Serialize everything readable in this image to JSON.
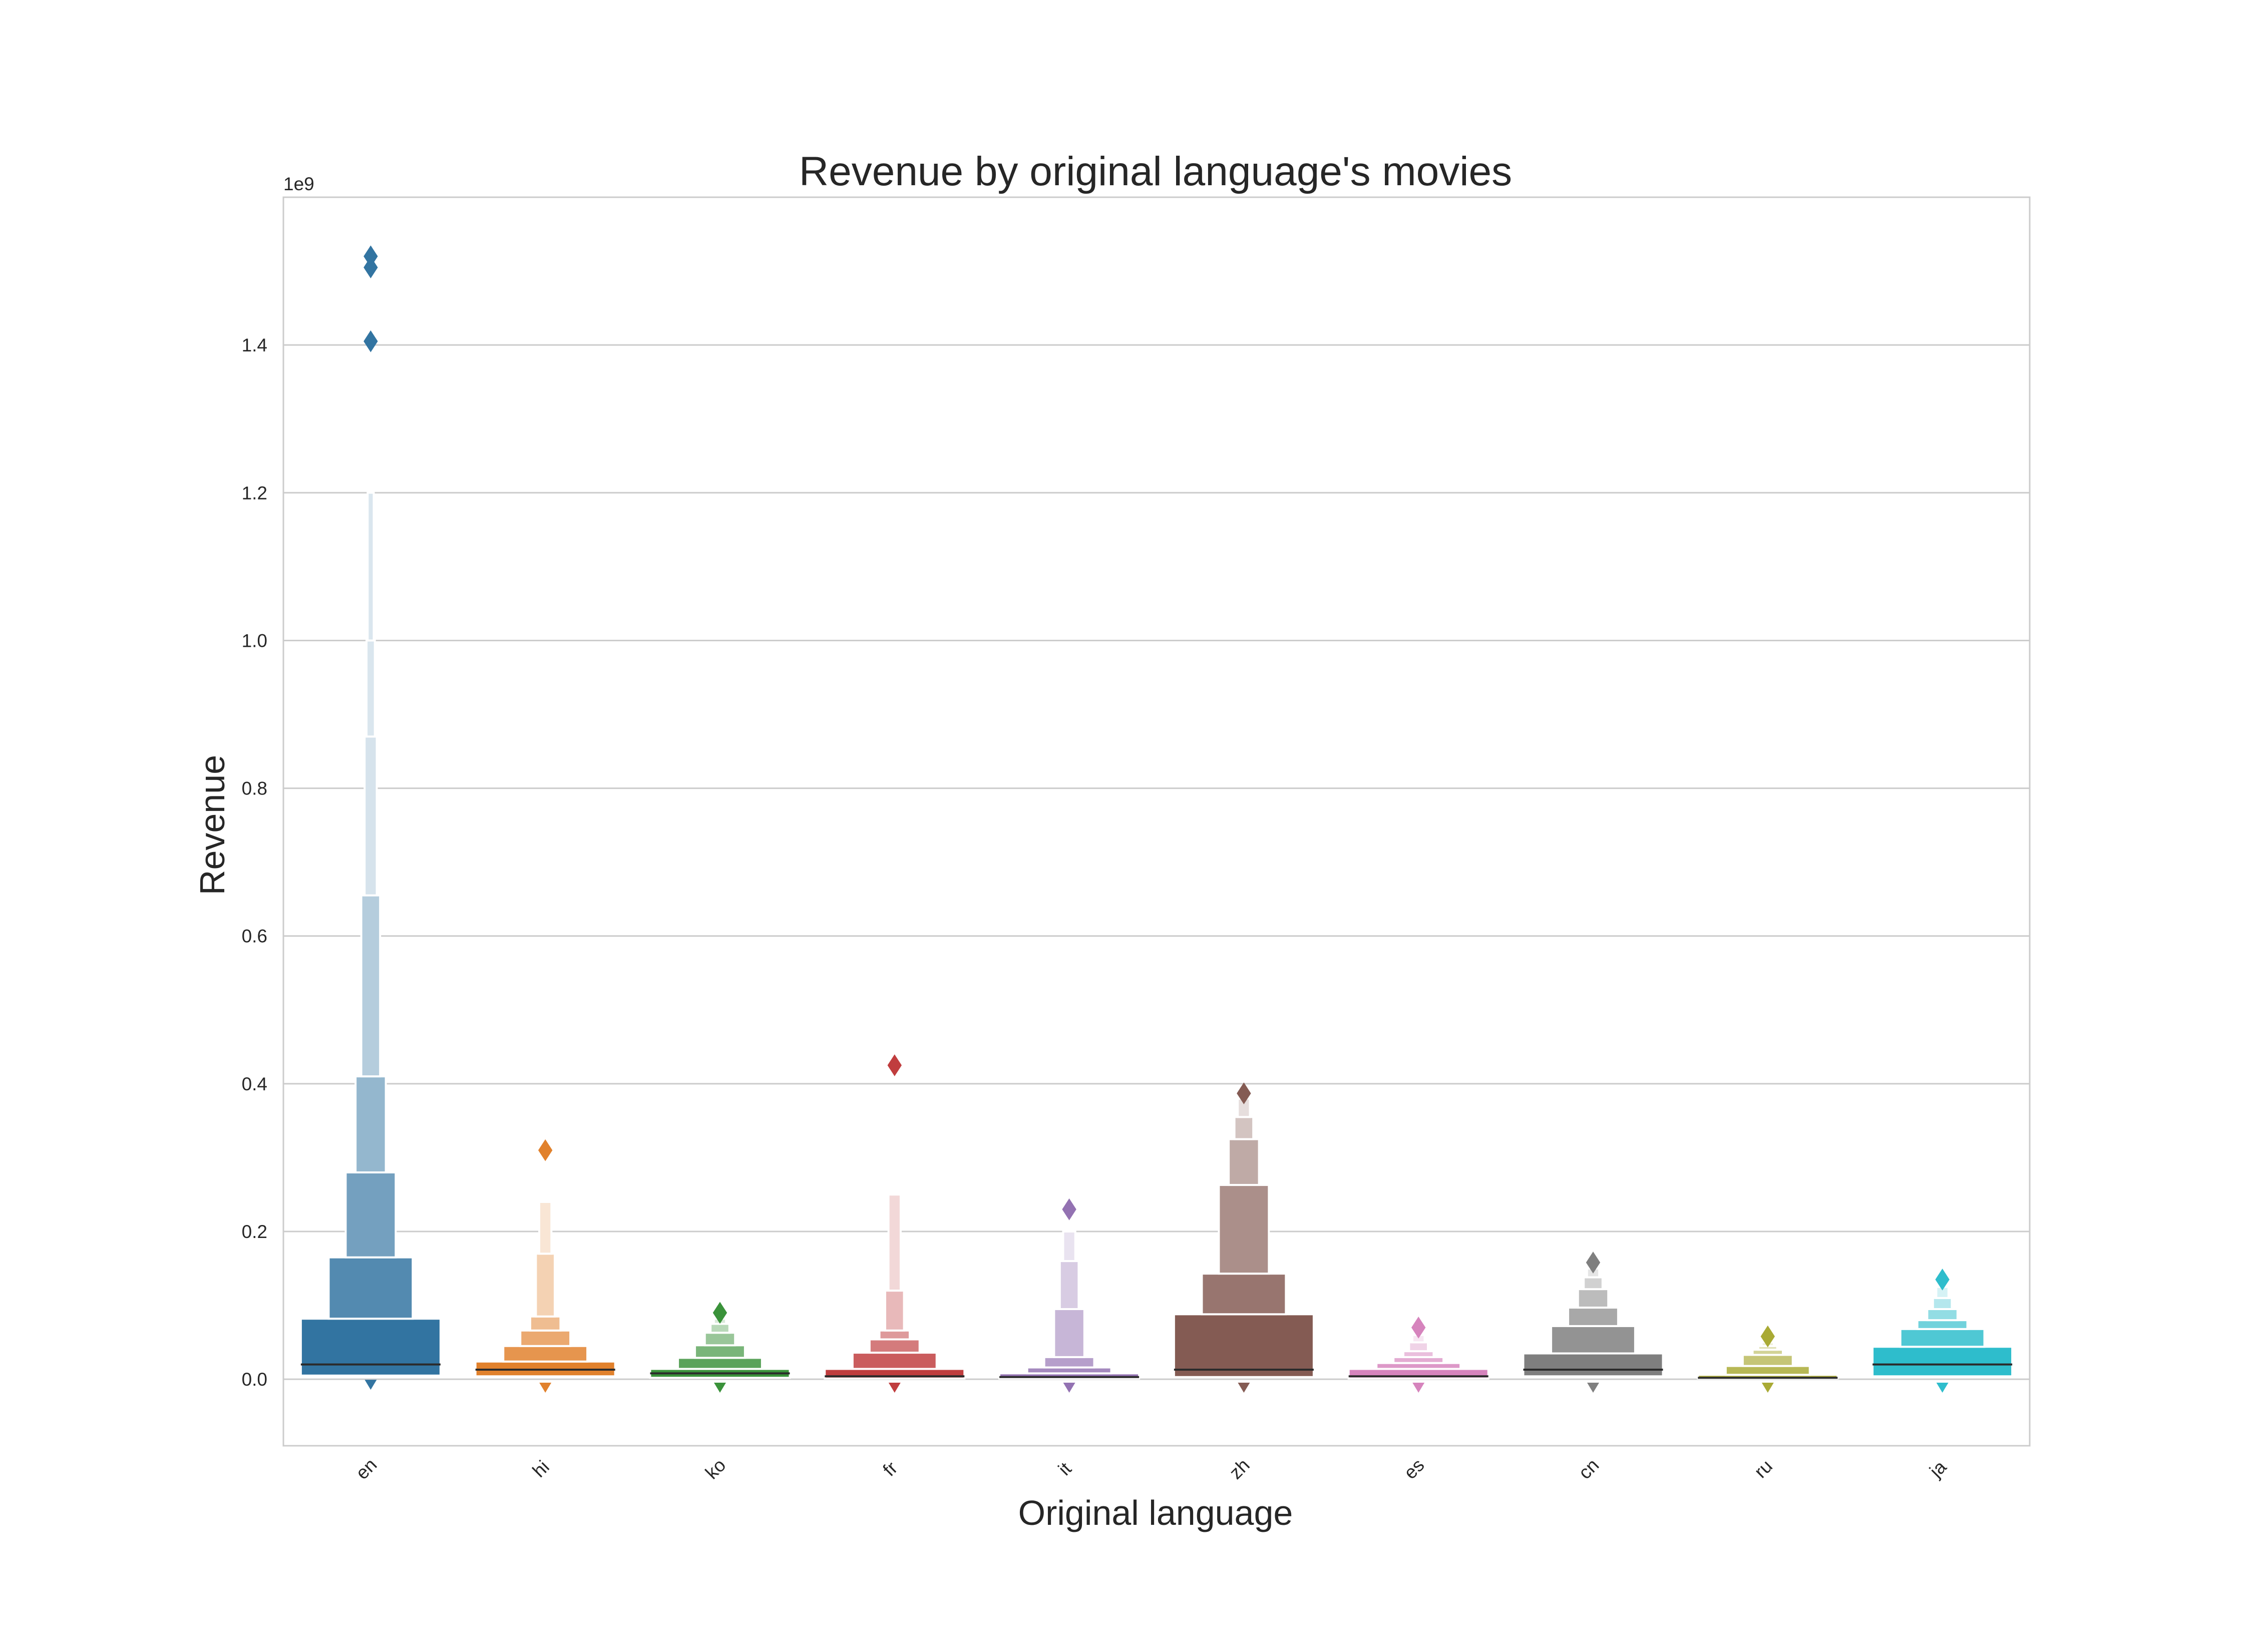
{
  "chart_data": {
    "type": "boxen",
    "title": "Revenue by original language's movies",
    "xlabel": "Original language",
    "ylabel": "Revenue",
    "y_offset_label": "1e9",
    "ylim": [
      -0.09,
      1.6
    ],
    "y_ticks": [
      0.0,
      0.2,
      0.4,
      0.6,
      0.8,
      1.0,
      1.2,
      1.4
    ],
    "y_tick_labels": [
      "0.0",
      "0.2",
      "0.4",
      "0.6",
      "0.8",
      "1.0",
      "1.2",
      "1.4"
    ],
    "grid": "horizontal",
    "categories": [
      "en",
      "hi",
      "ko",
      "fr",
      "it",
      "zh",
      "es",
      "cn",
      "ru",
      "ja"
    ],
    "series": [
      {
        "category": "en",
        "color": "#3274a1",
        "median": 0.02,
        "boxes": [
          [
            0.005,
            0.082
          ],
          [
            0.082,
            0.165
          ],
          [
            0.165,
            0.28
          ],
          [
            0.28,
            0.41
          ],
          [
            0.41,
            0.655
          ],
          [
            0.655,
            0.87
          ],
          [
            0.87,
            1.0
          ],
          [
            1.0,
            1.2
          ]
        ],
        "outliers": [
          1.52,
          1.505,
          1.405
        ],
        "min": -0.002
      },
      {
        "category": "hi",
        "color": "#e1812c",
        "median": 0.013,
        "boxes": [
          [
            0.004,
            0.024
          ],
          [
            0.024,
            0.045
          ],
          [
            0.045,
            0.066
          ],
          [
            0.066,
            0.085
          ],
          [
            0.085,
            0.17
          ],
          [
            0.17,
            0.24
          ]
        ],
        "outliers": [
          0.31
        ],
        "min": -0.006
      },
      {
        "category": "ko",
        "color": "#3a923a",
        "median": 0.008,
        "boxes": [
          [
            0.002,
            0.014
          ],
          [
            0.014,
            0.029
          ],
          [
            0.029,
            0.046
          ],
          [
            0.046,
            0.063
          ],
          [
            0.063,
            0.075
          ],
          [
            0.075,
            0.082
          ]
        ],
        "outliers": [
          0.09
        ],
        "min": -0.006
      },
      {
        "category": "fr",
        "color": "#c03d3e",
        "median": 0.004,
        "boxes": [
          [
            0.001,
            0.014
          ],
          [
            0.014,
            0.036
          ],
          [
            0.036,
            0.054
          ],
          [
            0.054,
            0.066
          ],
          [
            0.066,
            0.12
          ],
          [
            0.12,
            0.25
          ]
        ],
        "outliers": [
          0.425
        ],
        "min": -0.006
      },
      {
        "category": "it",
        "color": "#9372b2",
        "median": 0.003,
        "boxes": [
          [
            0.001,
            0.008
          ],
          [
            0.008,
            0.016
          ],
          [
            0.016,
            0.03
          ],
          [
            0.03,
            0.095
          ],
          [
            0.095,
            0.16
          ],
          [
            0.16,
            0.2
          ]
        ],
        "outliers": [
          0.23
        ],
        "min": -0.006
      },
      {
        "category": "zh",
        "color": "#845b53",
        "median": 0.013,
        "boxes": [
          [
            0.003,
            0.088
          ],
          [
            0.088,
            0.143
          ],
          [
            0.143,
            0.263
          ],
          [
            0.263,
            0.325
          ],
          [
            0.325,
            0.355
          ],
          [
            0.355,
            0.38
          ]
        ],
        "outliers": [
          0.387
        ],
        "min": -0.006
      },
      {
        "category": "es",
        "color": "#d684bd",
        "median": 0.004,
        "boxes": [
          [
            0.001,
            0.014
          ],
          [
            0.014,
            0.022
          ],
          [
            0.022,
            0.03
          ],
          [
            0.03,
            0.038
          ],
          [
            0.038,
            0.05
          ],
          [
            0.05,
            0.06
          ]
        ],
        "outliers": [
          0.07
        ],
        "min": -0.006
      },
      {
        "category": "cn",
        "color": "#7f7f7f",
        "median": 0.013,
        "boxes": [
          [
            0.004,
            0.035
          ],
          [
            0.035,
            0.072
          ],
          [
            0.072,
            0.097
          ],
          [
            0.097,
            0.122
          ],
          [
            0.122,
            0.138
          ],
          [
            0.138,
            0.15
          ]
        ],
        "outliers": [
          0.158
        ],
        "min": -0.006
      },
      {
        "category": "ru",
        "color": "#a9aa35",
        "median": 0.002,
        "boxes": [
          [
            0.001,
            0.006
          ],
          [
            0.006,
            0.018
          ],
          [
            0.018,
            0.033
          ],
          [
            0.033,
            0.04
          ],
          [
            0.04,
            0.045
          ],
          [
            0.045,
            0.05
          ]
        ],
        "outliers": [
          0.058
        ],
        "min": -0.006
      },
      {
        "category": "ja",
        "color": "#2ebdcc",
        "median": 0.02,
        "boxes": [
          [
            0.004,
            0.044
          ],
          [
            0.044,
            0.068
          ],
          [
            0.068,
            0.08
          ],
          [
            0.08,
            0.095
          ],
          [
            0.095,
            0.11
          ],
          [
            0.11,
            0.125
          ]
        ],
        "outliers": [
          0.135
        ],
        "min": -0.006
      }
    ]
  }
}
